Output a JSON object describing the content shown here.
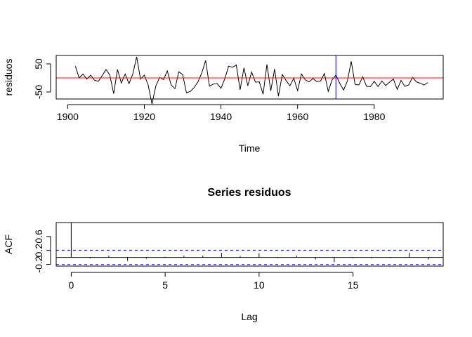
{
  "chart_data": [
    {
      "type": "line",
      "title": "",
      "xlabel": "Time",
      "ylabel": "residuos",
      "xlim": [
        1897,
        1998
      ],
      "ylim": [
        -75,
        80
      ],
      "x_ticks": [
        1900,
        1920,
        1940,
        1960,
        1980
      ],
      "y_ticks": [
        -50,
        50
      ],
      "grid": false,
      "x": [
        1902,
        1903,
        1904,
        1905,
        1906,
        1907,
        1908,
        1909,
        1910,
        1911,
        1912,
        1913,
        1914,
        1915,
        1916,
        1917,
        1918,
        1919,
        1920,
        1921,
        1922,
        1923,
        1924,
        1925,
        1926,
        1927,
        1928,
        1929,
        1930,
        1931,
        1932,
        1933,
        1934,
        1935,
        1936,
        1937,
        1938,
        1939,
        1940,
        1941,
        1942,
        1943,
        1944,
        1945,
        1946,
        1947,
        1948,
        1949,
        1950,
        1951,
        1952,
        1953,
        1954,
        1955,
        1956,
        1957,
        1958,
        1959,
        1960,
        1961,
        1962,
        1963,
        1964,
        1965,
        1966,
        1967,
        1968,
        1969,
        1970,
        1971,
        1972,
        1973,
        1974,
        1975,
        1976,
        1977,
        1978,
        1979,
        1980,
        1981,
        1982,
        1983,
        1984,
        1985,
        1986,
        1987,
        1988,
        1989,
        1990,
        1991,
        1992,
        1993,
        1994
      ],
      "series": [
        {
          "values": [
            42,
            0,
            14,
            -4,
            10,
            -8,
            -12,
            8,
            30,
            10,
            -56,
            30,
            -18,
            14,
            -20,
            14,
            75,
            -4,
            10,
            -25,
            -93,
            -29,
            2,
            -6,
            25,
            -25,
            -38,
            22,
            12,
            -53,
            -48,
            -34,
            -14,
            18,
            62,
            -29,
            -22,
            -20,
            -37,
            -3,
            42,
            38,
            46,
            -42,
            36,
            -28,
            21,
            -15,
            -14,
            -58,
            48,
            -46,
            32,
            -65,
            12,
            -9,
            -28,
            -1,
            -45,
            14,
            -7,
            -14,
            -2,
            -13,
            -11,
            16,
            -48,
            -7,
            10,
            -19,
            -43,
            -11,
            59,
            -23,
            -25,
            4,
            -30,
            -31,
            -12,
            -31,
            -11,
            -27,
            -15,
            -4,
            -41,
            -9,
            -30,
            -25,
            2,
            -14,
            -19,
            -25,
            -17
          ]
        }
      ],
      "reference_lines": [
        {
          "orientation": "horizontal",
          "value": 0,
          "color": "#ff0000"
        },
        {
          "orientation": "vertical",
          "value": 1970,
          "color": "#0000ff"
        }
      ]
    },
    {
      "type": "bar",
      "title": "Series  residuos",
      "xlabel": "Lag",
      "ylabel": "ACF",
      "xlim": [
        -0.8,
        19.8
      ],
      "ylim": [
        -0.25,
        1.0
      ],
      "x_ticks": [
        0,
        5,
        10,
        15
      ],
      "y_ticks": [
        -0.2,
        0.2,
        0.6
      ],
      "grid": false,
      "categories": [
        0,
        1,
        2,
        3,
        4,
        5,
        6,
        7,
        8,
        9,
        10,
        11,
        12,
        13,
        14,
        15,
        16,
        17,
        18,
        19
      ],
      "values": [
        1.0,
        -0.03,
        0.05,
        -0.1,
        -0.04,
        0.02,
        0.05,
        0.05,
        0.13,
        0.04,
        0.12,
        -0.02,
        0.05,
        -0.06,
        -0.14,
        -0.03,
        -0.03,
        -0.02,
        0.13,
        -0.06
      ],
      "confidence_band": 0.205,
      "colors": {
        "bars": "#000000",
        "confidence": "#0000ff",
        "zero_line": "#000000"
      }
    }
  ]
}
